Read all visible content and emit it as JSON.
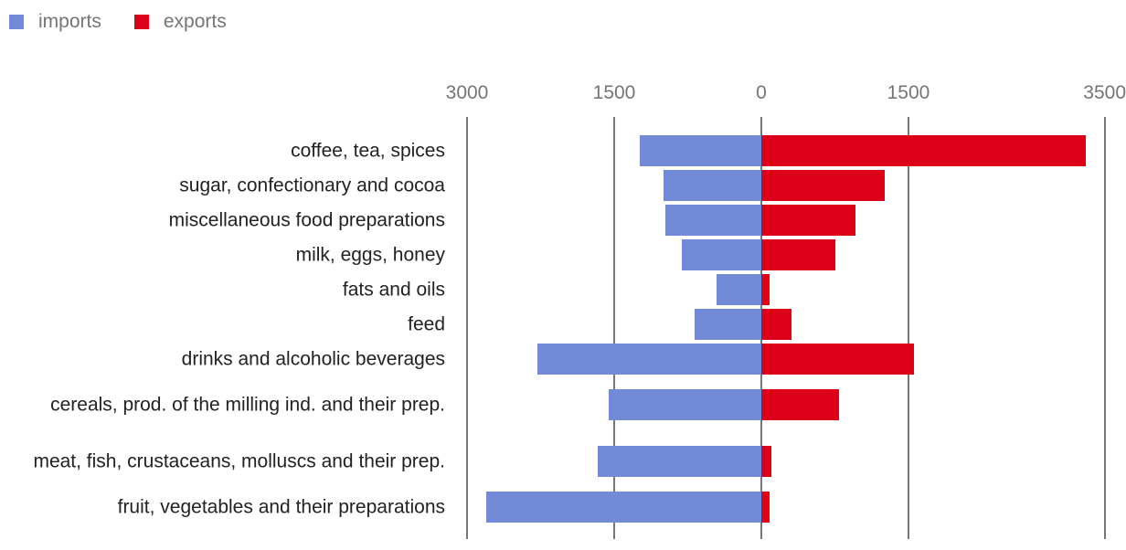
{
  "chart_data": {
    "type": "bar",
    "orientation": "horizontal-diverging",
    "title": "",
    "xlabel": "",
    "ylabel": "",
    "legend": {
      "position": "top-left",
      "entries": [
        "imports",
        "exports"
      ]
    },
    "colors": {
      "imports": "#728AD8",
      "exports": "#DC0019"
    },
    "xlim": [
      -3000,
      3500
    ],
    "ticks": [
      {
        "value": -3000,
        "label": "3000"
      },
      {
        "value": -1500,
        "label": "1500"
      },
      {
        "value": 0,
        "label": "0"
      },
      {
        "value": 1500,
        "label": "1500"
      },
      {
        "value": 3500,
        "label": "3500"
      }
    ],
    "categories": [
      "coffee, tea, spices",
      "sugar, confectionary and cocoa",
      "miscellaneous food preparations",
      "milk, eggs, honey",
      "fats and oils",
      "feed",
      "drinks and alcoholic beverages",
      "cereals, prod. of the milling ind. and their prep.",
      "meat, fish, crustaceans, molluscs and their prep.",
      "fruit, vegetables and their preparations"
    ],
    "series": [
      {
        "name": "imports",
        "values": [
          1240,
          1000,
          980,
          810,
          455,
          680,
          2285,
          1555,
          1670,
          2805
        ]
      },
      {
        "name": "exports",
        "values": [
          3310,
          1260,
          960,
          755,
          85,
          310,
          1555,
          790,
          105,
          85
        ]
      }
    ]
  }
}
